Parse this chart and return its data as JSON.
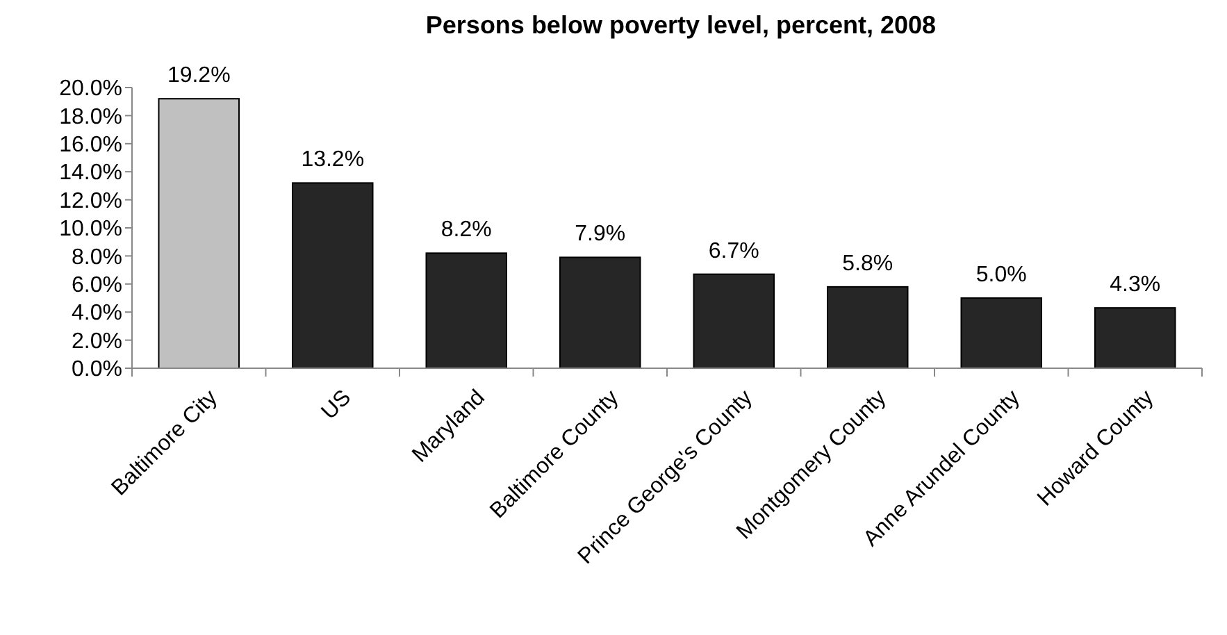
{
  "chart_data": {
    "type": "bar",
    "title": "Persons below poverty level, percent, 2008",
    "categories": [
      "Baltimore City",
      "US",
      "Maryland",
      "Baltimore County",
      "Prince George's County",
      "Montgomery County",
      "Anne Arundel County",
      "Howard County"
    ],
    "values": [
      19.2,
      13.2,
      8.2,
      7.9,
      6.7,
      5.8,
      5.0,
      4.3
    ],
    "colors": [
      "#c0c0c0",
      "#262626",
      "#262626",
      "#262626",
      "#262626",
      "#262626",
      "#262626",
      "#262626"
    ],
    "value_labels": [
      "19.2%",
      "13.2%",
      "8.2%",
      "7.9%",
      "6.7%",
      "5.8%",
      "5.0%",
      "4.3%"
    ],
    "ylim": [
      0,
      20
    ],
    "yticks": [
      {
        "value": 0,
        "label": "0.0%"
      },
      {
        "value": 2,
        "label": "2.0%"
      },
      {
        "value": 4,
        "label": "4.0%"
      },
      {
        "value": 6,
        "label": "6.0%"
      },
      {
        "value": 8,
        "label": "8.0%"
      },
      {
        "value": 10,
        "label": "10.0%"
      },
      {
        "value": 12,
        "label": "12.0%"
      },
      {
        "value": 14,
        "label": "14.0%"
      },
      {
        "value": 16,
        "label": "16.0%"
      },
      {
        "value": 18,
        "label": "18.0%"
      },
      {
        "value": 20,
        "label": "20.0%"
      }
    ],
    "grid": false
  }
}
